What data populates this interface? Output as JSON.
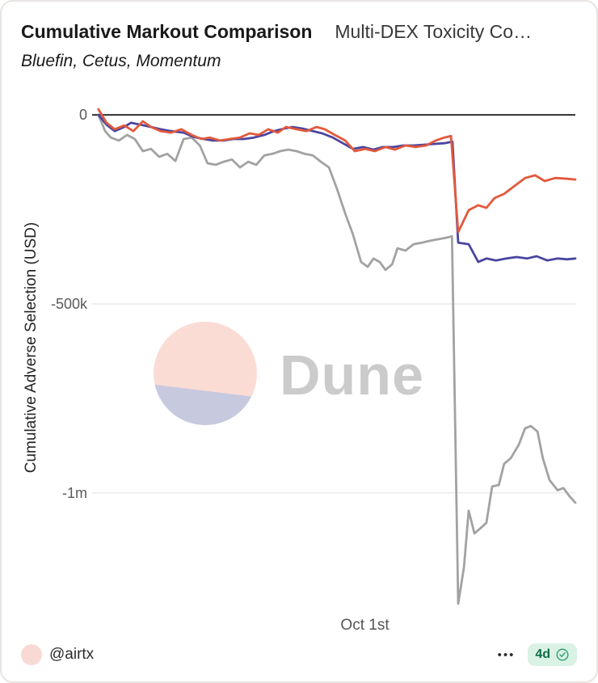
{
  "header": {
    "title": "Cumulative Markout Comparison",
    "title_right": "Multi-DEX Toxicity Co…",
    "subtitle": "Bluefin, Cetus, Momentum"
  },
  "watermark": {
    "text": "Dune"
  },
  "footer": {
    "author": "@airtx",
    "menu_dots": "•••",
    "age": "4d"
  },
  "chart_data": {
    "type": "line",
    "title": "Cumulative Markout Comparison",
    "subtitle": "Bluefin, Cetus, Momentum",
    "ylabel": "Cumulative Adverse Selection (USD)",
    "xlabel": "",
    "grid": true,
    "legend": "none",
    "x_axis": {
      "tick_label": "Oct 1st",
      "tick_x": 56
    },
    "yticks": [
      {
        "label": "0",
        "value": 0
      },
      {
        "label": "-500k",
        "value": -500000
      },
      {
        "label": "-1m",
        "value": -1000000
      }
    ],
    "xlim": [
      0,
      100
    ],
    "y_top_value": 43000,
    "y_bottom_value": -1336000,
    "colors": {
      "grid": "#e4e4e4",
      "zero_line": "#1c1c1c"
    },
    "series": [
      {
        "name": "Momentum",
        "color": "#a2a2a2",
        "points": [
          [
            0.3,
            0
          ],
          [
            1.7,
            -43000
          ],
          [
            2.9,
            -60000
          ],
          [
            4.6,
            -68000
          ],
          [
            6.3,
            -53000
          ],
          [
            7.9,
            -64000
          ],
          [
            9.6,
            -96000
          ],
          [
            11.3,
            -90000
          ],
          [
            13,
            -111000
          ],
          [
            14.7,
            -103000
          ],
          [
            16.4,
            -122000
          ],
          [
            18.1,
            -64000
          ],
          [
            19.8,
            -60000
          ],
          [
            21.5,
            -81000
          ],
          [
            23.1,
            -128000
          ],
          [
            24.8,
            -132000
          ],
          [
            26.5,
            -124000
          ],
          [
            28.2,
            -118000
          ],
          [
            29.9,
            -139000
          ],
          [
            31.6,
            -124000
          ],
          [
            33.3,
            -132000
          ],
          [
            35,
            -107000
          ],
          [
            36.7,
            -103000
          ],
          [
            38.3,
            -96000
          ],
          [
            40,
            -92000
          ],
          [
            41.7,
            -96000
          ],
          [
            43.4,
            -103000
          ],
          [
            45.1,
            -107000
          ],
          [
            46.8,
            -124000
          ],
          [
            48.5,
            -139000
          ],
          [
            50.2,
            -197000
          ],
          [
            51.9,
            -261000
          ],
          [
            53.5,
            -316000
          ],
          [
            55.2,
            -389000
          ],
          [
            56.6,
            -402000
          ],
          [
            57.8,
            -380000
          ],
          [
            59.1,
            -389000
          ],
          [
            60.3,
            -410000
          ],
          [
            61.7,
            -395000
          ],
          [
            62.8,
            -353000
          ],
          [
            64.5,
            -359000
          ],
          [
            66.2,
            -342000
          ],
          [
            67.9,
            -338000
          ],
          [
            69.6,
            -333000
          ],
          [
            71.3,
            -329000
          ],
          [
            73,
            -325000
          ],
          [
            74.2,
            -321000
          ],
          [
            75.5,
            -1293000
          ],
          [
            76.7,
            -1197000
          ],
          [
            77.7,
            -1047000
          ],
          [
            78.9,
            -1107000
          ],
          [
            80.1,
            -1094000
          ],
          [
            81.4,
            -1079000
          ],
          [
            82.6,
            -983000
          ],
          [
            84,
            -979000
          ],
          [
            85.1,
            -923000
          ],
          [
            86.5,
            -908000
          ],
          [
            88.2,
            -872000
          ],
          [
            89.5,
            -829000
          ],
          [
            90.7,
            -823000
          ],
          [
            92.1,
            -838000
          ],
          [
            93.2,
            -908000
          ],
          [
            94.6,
            -966000
          ],
          [
            96.3,
            -993000
          ],
          [
            97.5,
            -987000
          ],
          [
            98.8,
            -1009000
          ],
          [
            100,
            -1026000
          ]
        ]
      },
      {
        "name": "Cetus",
        "color": "#4a45a0",
        "points": [
          [
            0.3,
            0
          ],
          [
            2,
            -26000
          ],
          [
            3.7,
            -43000
          ],
          [
            5.7,
            -32000
          ],
          [
            7.1,
            -21000
          ],
          [
            9.1,
            -26000
          ],
          [
            11.3,
            -32000
          ],
          [
            13.3,
            -38000
          ],
          [
            15.5,
            -43000
          ],
          [
            18.1,
            -47000
          ],
          [
            20.1,
            -58000
          ],
          [
            22.3,
            -64000
          ],
          [
            24.3,
            -68000
          ],
          [
            26.5,
            -68000
          ],
          [
            28.5,
            -64000
          ],
          [
            30.7,
            -64000
          ],
          [
            32.8,
            -60000
          ],
          [
            35,
            -53000
          ],
          [
            37,
            -43000
          ],
          [
            39.2,
            -36000
          ],
          [
            40.9,
            -32000
          ],
          [
            42.9,
            -36000
          ],
          [
            45.1,
            -43000
          ],
          [
            47.1,
            -49000
          ],
          [
            49.3,
            -60000
          ],
          [
            51.4,
            -75000
          ],
          [
            53.5,
            -90000
          ],
          [
            55.6,
            -85000
          ],
          [
            57.8,
            -92000
          ],
          [
            59.8,
            -85000
          ],
          [
            62,
            -85000
          ],
          [
            64,
            -81000
          ],
          [
            66.2,
            -81000
          ],
          [
            68.2,
            -79000
          ],
          [
            70.4,
            -77000
          ],
          [
            72.6,
            -75000
          ],
          [
            74.3,
            -71000
          ],
          [
            75.5,
            -338000
          ],
          [
            77.7,
            -342000
          ],
          [
            79.7,
            -389000
          ],
          [
            81.4,
            -380000
          ],
          [
            83.4,
            -385000
          ],
          [
            85.6,
            -380000
          ],
          [
            87.7,
            -376000
          ],
          [
            89.9,
            -380000
          ],
          [
            91.9,
            -374000
          ],
          [
            94.1,
            -385000
          ],
          [
            96.3,
            -380000
          ],
          [
            98.3,
            -382000
          ],
          [
            100,
            -380000
          ]
        ]
      },
      {
        "name": "Bluefin",
        "color": "#e2593c",
        "points": [
          [
            0.3,
            15000
          ],
          [
            2,
            -21000
          ],
          [
            3.7,
            -38000
          ],
          [
            5.7,
            -28000
          ],
          [
            7.6,
            -43000
          ],
          [
            9.6,
            -17000
          ],
          [
            11.3,
            -32000
          ],
          [
            13.3,
            -43000
          ],
          [
            15.5,
            -47000
          ],
          [
            17.6,
            -38000
          ],
          [
            19.8,
            -53000
          ],
          [
            21.8,
            -64000
          ],
          [
            23.6,
            -60000
          ],
          [
            25.7,
            -68000
          ],
          [
            27.7,
            -64000
          ],
          [
            29.9,
            -60000
          ],
          [
            31.9,
            -49000
          ],
          [
            33.8,
            -53000
          ],
          [
            35.8,
            -38000
          ],
          [
            37.8,
            -47000
          ],
          [
            39.5,
            -32000
          ],
          [
            41.7,
            -38000
          ],
          [
            43.8,
            -43000
          ],
          [
            45.9,
            -32000
          ],
          [
            47.6,
            -38000
          ],
          [
            49.7,
            -53000
          ],
          [
            51.9,
            -68000
          ],
          [
            53.9,
            -96000
          ],
          [
            56.1,
            -90000
          ],
          [
            58.1,
            -96000
          ],
          [
            60.3,
            -85000
          ],
          [
            62.3,
            -92000
          ],
          [
            64.5,
            -81000
          ],
          [
            66.6,
            -85000
          ],
          [
            68.8,
            -81000
          ],
          [
            70.8,
            -68000
          ],
          [
            72.6,
            -60000
          ],
          [
            74,
            -56000
          ],
          [
            75.5,
            -310000
          ],
          [
            77.7,
            -252000
          ],
          [
            79.7,
            -239000
          ],
          [
            81.4,
            -246000
          ],
          [
            83.1,
            -220000
          ],
          [
            85.1,
            -209000
          ],
          [
            87.3,
            -188000
          ],
          [
            89.5,
            -167000
          ],
          [
            91.6,
            -160000
          ],
          [
            93.6,
            -175000
          ],
          [
            95.8,
            -167000
          ],
          [
            98.3,
            -169000
          ],
          [
            100,
            -171000
          ]
        ]
      }
    ]
  }
}
